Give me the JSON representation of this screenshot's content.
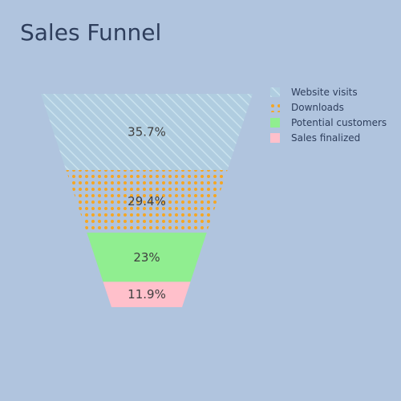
{
  "chart_data": {
    "type": "funnel",
    "title": "Sales Funnel",
    "categories": [
      "Website visits",
      "Downloads",
      "Potential customers",
      "Sales finalized"
    ],
    "values": [
      35.7,
      29.4,
      23.0,
      11.9
    ],
    "value_labels": [
      "35.7%",
      "29.4%",
      "23%",
      "11.9%"
    ],
    "series": [
      {
        "name": "Website visits",
        "color": "#add8e6",
        "pattern": "diagonal-hatch"
      },
      {
        "name": "Downloads",
        "color": "#f5a623",
        "pattern": "dots"
      },
      {
        "name": "Potential customers",
        "color": "#90ee90",
        "pattern": "solid"
      },
      {
        "name": "Sales finalized",
        "color": "#ffc0cb",
        "pattern": "solid"
      }
    ],
    "legend": "top-right",
    "background": "#b0c4de"
  }
}
